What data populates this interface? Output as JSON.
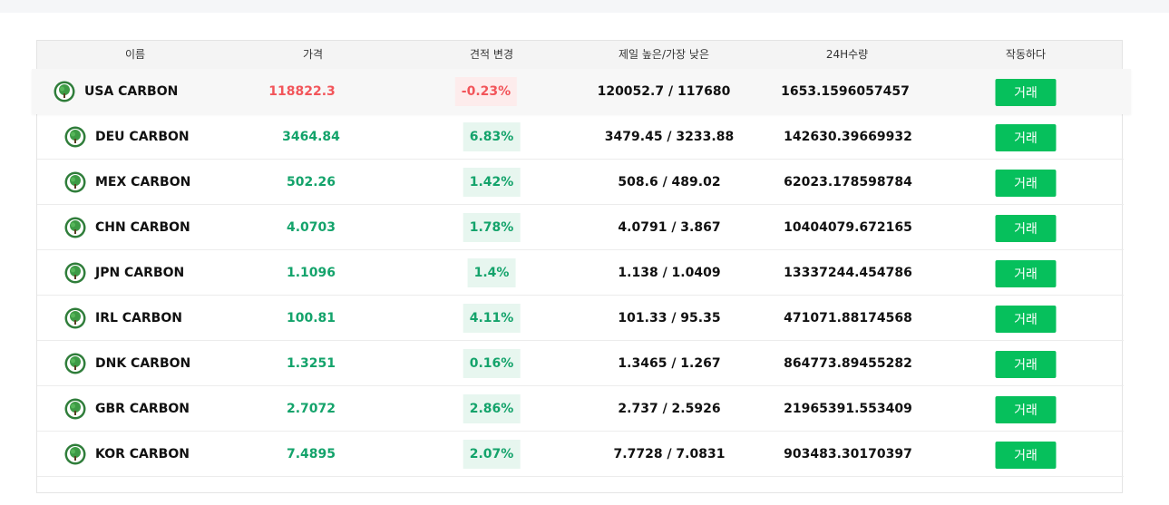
{
  "header": {
    "name": "이름",
    "price": "가격",
    "change": "견적 변경",
    "high_low": "제일 높은/가장 낮은",
    "volume": "24H수량",
    "action": "작동하다"
  },
  "colors": {
    "up": "#14a36b",
    "down": "#f2555a",
    "button": "#06c05c"
  },
  "rows": [
    {
      "name": "USA CARBON",
      "price": "118822.3",
      "change": "-0.23%",
      "trend": "down",
      "high_low": "120052.7 / 117680",
      "volume": "1653.1596057457",
      "button": "거래",
      "icon": "carbon-tree-icon"
    },
    {
      "name": "DEU CARBON",
      "price": "3464.84",
      "change": "6.83%",
      "trend": "up",
      "high_low": "3479.45 / 3233.88",
      "volume": "142630.39669932",
      "button": "거래",
      "icon": "carbon-tree-icon"
    },
    {
      "name": "MEX CARBON",
      "price": "502.26",
      "change": "1.42%",
      "trend": "up",
      "high_low": "508.6 / 489.02",
      "volume": "62023.178598784",
      "button": "거래",
      "icon": "carbon-tree-icon"
    },
    {
      "name": "CHN CARBON",
      "price": "4.0703",
      "change": "1.78%",
      "trend": "up",
      "high_low": "4.0791 / 3.867",
      "volume": "10404079.672165",
      "button": "거래",
      "icon": "carbon-tree-icon"
    },
    {
      "name": "JPN CARBON",
      "price": "1.1096",
      "change": "1.4%",
      "trend": "up",
      "high_low": "1.138 / 1.0409",
      "volume": "13337244.454786",
      "button": "거래",
      "icon": "carbon-tree-icon"
    },
    {
      "name": "IRL CARBON",
      "price": "100.81",
      "change": "4.11%",
      "trend": "up",
      "high_low": "101.33 / 95.35",
      "volume": "471071.88174568",
      "button": "거래",
      "icon": "carbon-tree-icon"
    },
    {
      "name": "DNK CARBON",
      "price": "1.3251",
      "change": "0.16%",
      "trend": "up",
      "high_low": "1.3465 / 1.267",
      "volume": "864773.89455282",
      "button": "거래",
      "icon": "carbon-tree-icon"
    },
    {
      "name": "GBR CARBON",
      "price": "2.7072",
      "change": "2.86%",
      "trend": "up",
      "high_low": "2.737 / 2.5926",
      "volume": "21965391.553409",
      "button": "거래",
      "icon": "carbon-tree-icon"
    },
    {
      "name": "KOR CARBON",
      "price": "7.4895",
      "change": "2.07%",
      "trend": "up",
      "high_low": "7.7728 / 7.0831",
      "volume": "903483.30170397",
      "button": "거래",
      "icon": "carbon-tree-icon"
    }
  ]
}
